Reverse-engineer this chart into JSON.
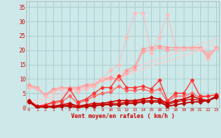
{
  "x": [
    0,
    1,
    2,
    3,
    4,
    5,
    6,
    7,
    8,
    9,
    10,
    11,
    12,
    13,
    14,
    15,
    16,
    17,
    18,
    19,
    20,
    21,
    22,
    23
  ],
  "line_smooth1": [
    2.0,
    2.5,
    3.0,
    4.0,
    5.0,
    6.0,
    7.0,
    8.0,
    9.0,
    10.0,
    11.0,
    12.0,
    13.0,
    14.0,
    15.0,
    16.0,
    17.0,
    18.0,
    19.0,
    20.0,
    21.0,
    22.0,
    23.0,
    24.0
  ],
  "line_smooth2": [
    1.0,
    1.5,
    2.0,
    3.0,
    4.0,
    5.0,
    6.0,
    7.0,
    8.0,
    9.0,
    9.5,
    10.5,
    11.5,
    12.5,
    13.5,
    14.5,
    15.5,
    16.0,
    17.0,
    18.0,
    19.0,
    20.0,
    21.0,
    22.0
  ],
  "line_medium1": [
    8.0,
    7.0,
    4.5,
    6.5,
    7.0,
    7.0,
    7.0,
    8.0,
    8.0,
    10.0,
    10.5,
    10.0,
    13.0,
    14.5,
    20.5,
    21.0,
    21.5,
    21.0,
    21.0,
    21.0,
    21.0,
    21.0,
    17.5,
    21.0
  ],
  "line_medium2": [
    7.5,
    6.5,
    4.0,
    6.0,
    6.5,
    6.5,
    6.5,
    7.5,
    7.5,
    9.5,
    10.0,
    9.5,
    12.0,
    13.5,
    19.5,
    20.0,
    21.0,
    20.0,
    20.5,
    20.5,
    20.5,
    20.5,
    19.0,
    20.5
  ],
  "line_spike": [
    7.0,
    6.5,
    4.0,
    5.5,
    6.5,
    6.5,
    5.5,
    6.5,
    7.5,
    10.0,
    13.0,
    15.0,
    24.5,
    33.0,
    33.0,
    19.0,
    24.5,
    32.5,
    20.5,
    20.5,
    20.5,
    20.5,
    17.0,
    20.5
  ],
  "line_red1": [
    2.5,
    0.5,
    1.0,
    2.0,
    2.5,
    6.5,
    2.0,
    3.0,
    5.0,
    7.0,
    7.0,
    11.0,
    7.0,
    7.0,
    7.5,
    6.5,
    9.5,
    2.5,
    5.0,
    5.0,
    9.5,
    4.0,
    4.0,
    4.5
  ],
  "line_red2": [
    2.5,
    0.5,
    1.0,
    1.5,
    2.0,
    4.0,
    1.5,
    2.5,
    4.0,
    5.0,
    5.5,
    7.5,
    6.0,
    6.0,
    6.5,
    5.5,
    6.5,
    2.0,
    4.0,
    4.0,
    5.0,
    3.5,
    4.0,
    4.5
  ],
  "line_dark1": [
    2.5,
    0.0,
    0.5,
    0.5,
    1.0,
    1.5,
    0.5,
    1.0,
    1.5,
    1.5,
    2.0,
    2.5,
    2.5,
    2.5,
    3.0,
    3.5,
    3.0,
    1.5,
    2.5,
    3.0,
    4.0,
    3.0,
    2.5,
    4.0
  ],
  "line_dark2": [
    2.5,
    0.5,
    0.5,
    0.5,
    0.5,
    1.0,
    0.5,
    0.5,
    1.0,
    1.0,
    1.5,
    1.5,
    2.0,
    2.0,
    2.5,
    2.5,
    2.5,
    1.0,
    2.0,
    2.5,
    3.0,
    2.5,
    2.5,
    4.0
  ],
  "line_dark3": [
    2.0,
    0.0,
    0.0,
    0.0,
    0.5,
    0.5,
    0.0,
    0.5,
    0.5,
    1.0,
    1.0,
    1.0,
    1.5,
    1.5,
    2.0,
    2.0,
    2.0,
    0.5,
    1.0,
    1.5,
    2.0,
    2.0,
    2.5,
    3.5
  ],
  "bg_color": "#cce8e8",
  "grid_color": "#aacece",
  "xlabel": "Vent moyen/en rafales ( km/h )",
  "ylabel_ticks": [
    0,
    5,
    10,
    15,
    20,
    25,
    30,
    35
  ],
  "xticks": [
    0,
    1,
    2,
    3,
    4,
    5,
    6,
    7,
    8,
    9,
    10,
    11,
    12,
    13,
    14,
    15,
    16,
    17,
    18,
    19,
    20,
    21,
    22,
    23
  ],
  "xlim": [
    -0.3,
    23.3
  ],
  "ylim": [
    0,
    37
  ]
}
